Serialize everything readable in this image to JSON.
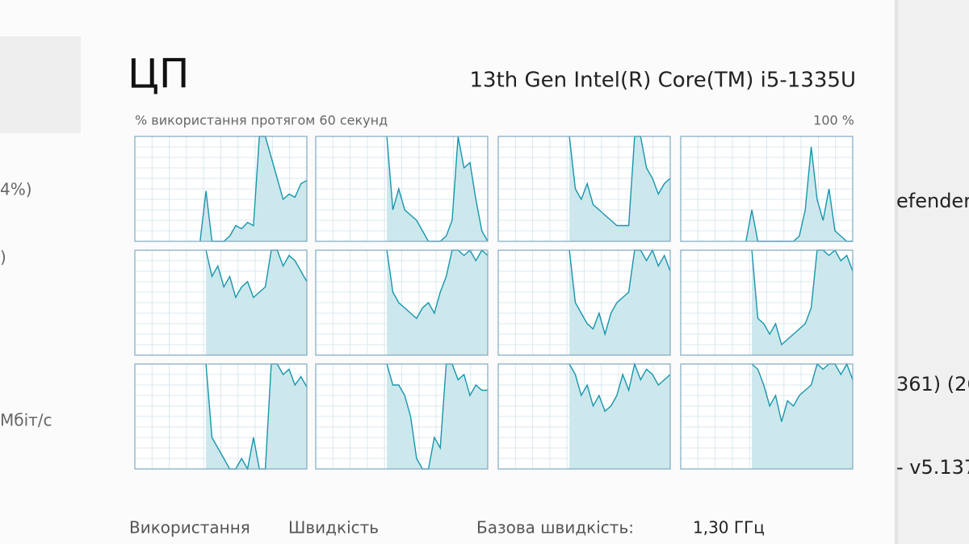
{
  "header": {
    "title": "ЦП",
    "processor": "13th Gen Intel(R) Core(TM) i5-1335U"
  },
  "graph_caption": "% використання протягом 60 секунд",
  "graph_max_label": "100 %",
  "cpu_graphs": [
    {
      "values": [
        null,
        null,
        null,
        null,
        null,
        null,
        null,
        null,
        null,
        null,
        null,
        0,
        48,
        0,
        0,
        0,
        5,
        15,
        12,
        18,
        15,
        100,
        100,
        80,
        60,
        40,
        45,
        42,
        55,
        58
      ]
    },
    {
      "values": [
        null,
        null,
        null,
        null,
        null,
        null,
        null,
        null,
        null,
        null,
        null,
        null,
        100,
        30,
        50,
        30,
        25,
        20,
        10,
        0,
        0,
        0,
        5,
        20,
        100,
        70,
        75,
        40,
        10,
        0
      ]
    },
    {
      "values": [
        null,
        null,
        null,
        null,
        null,
        null,
        null,
        null,
        null,
        null,
        null,
        null,
        100,
        50,
        40,
        55,
        35,
        30,
        25,
        20,
        15,
        15,
        15,
        100,
        100,
        70,
        60,
        45,
        55,
        60
      ]
    },
    {
      "values": [
        null,
        null,
        null,
        null,
        null,
        null,
        null,
        null,
        null,
        null,
        null,
        0,
        30,
        0,
        0,
        0,
        0,
        0,
        0,
        0,
        5,
        30,
        90,
        40,
        20,
        50,
        10,
        5,
        0,
        0
      ]
    },
    {
      "values": [
        null,
        null,
        null,
        null,
        null,
        null,
        null,
        null,
        null,
        null,
        null,
        null,
        100,
        75,
        85,
        65,
        75,
        55,
        65,
        70,
        55,
        60,
        65,
        100,
        100,
        85,
        95,
        90,
        80,
        70
      ]
    },
    {
      "values": [
        null,
        null,
        null,
        null,
        null,
        null,
        null,
        null,
        null,
        null,
        null,
        null,
        100,
        60,
        50,
        45,
        40,
        35,
        45,
        50,
        40,
        60,
        75,
        100,
        100,
        95,
        100,
        90,
        100,
        95
      ]
    },
    {
      "values": [
        null,
        null,
        null,
        null,
        null,
        null,
        null,
        null,
        null,
        null,
        null,
        null,
        100,
        50,
        40,
        30,
        25,
        40,
        20,
        40,
        50,
        55,
        60,
        100,
        100,
        90,
        100,
        85,
        95,
        80
      ]
    },
    {
      "values": [
        null,
        null,
        null,
        null,
        null,
        null,
        null,
        null,
        null,
        null,
        null,
        null,
        100,
        35,
        30,
        20,
        30,
        10,
        15,
        20,
        25,
        30,
        45,
        100,
        100,
        95,
        100,
        90,
        95,
        80
      ]
    },
    {
      "values": [
        null,
        null,
        null,
        null,
        null,
        null,
        null,
        null,
        null,
        null,
        null,
        null,
        100,
        30,
        20,
        10,
        0,
        0,
        10,
        0,
        30,
        0,
        0,
        100,
        100,
        90,
        95,
        80,
        88,
        78
      ]
    },
    {
      "values": [
        null,
        null,
        null,
        null,
        null,
        null,
        null,
        null,
        null,
        null,
        null,
        null,
        100,
        80,
        80,
        70,
        50,
        10,
        0,
        0,
        30,
        20,
        100,
        100,
        85,
        90,
        70,
        80,
        75,
        75
      ]
    },
    {
      "values": [
        null,
        null,
        null,
        null,
        null,
        null,
        null,
        null,
        null,
        null,
        null,
        null,
        100,
        90,
        70,
        80,
        60,
        70,
        55,
        60,
        70,
        90,
        75,
        100,
        85,
        95,
        90,
        80,
        85,
        90
      ]
    },
    {
      "values": [
        null,
        null,
        null,
        null,
        null,
        null,
        null,
        null,
        null,
        null,
        null,
        null,
        100,
        95,
        80,
        60,
        70,
        45,
        65,
        60,
        70,
        75,
        80,
        100,
        95,
        100,
        100,
        90,
        100,
        85
      ]
    }
  ],
  "stats": {
    "usage_label": "Використання",
    "speed_label": "Швидкість",
    "base_speed_label": "Базова швидкість:",
    "base_speed_value": "1,30 ГГц"
  },
  "left_panel": {
    "items": [
      "4%)",
      ")",
      "Мбіт/с"
    ]
  },
  "right_window": {
    "items": [
      "efender",
      "361) (26",
      "- v5.137"
    ]
  }
}
